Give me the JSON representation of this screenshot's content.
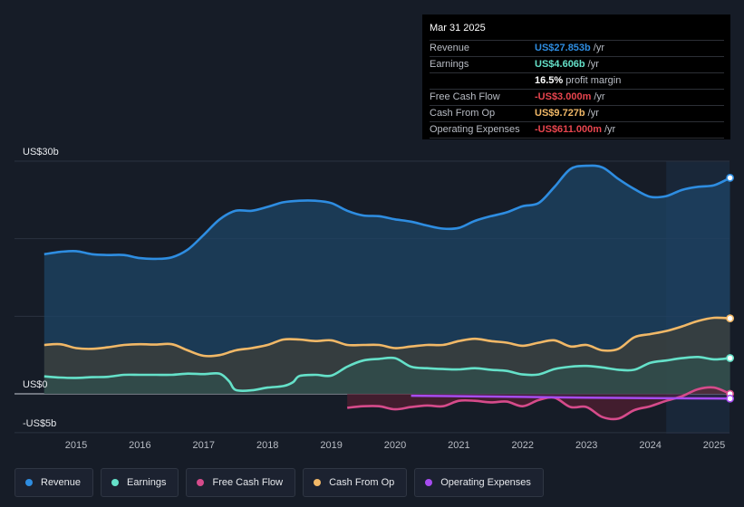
{
  "tooltip": {
    "date": "Mar 31 2025",
    "rows": [
      {
        "label": "Revenue",
        "value": "US$27.853b",
        "unit": "/yr",
        "color": "#2e8de1"
      },
      {
        "label": "Earnings",
        "value": "US$4.606b",
        "unit": "/yr",
        "color": "#65e1c9"
      },
      {
        "label": "",
        "value": "16.5%",
        "unit": "profit margin",
        "color": "#ffffff"
      },
      {
        "label": "Free Cash Flow",
        "value": "-US$3.000m",
        "unit": "/yr",
        "color": "#e8454e"
      },
      {
        "label": "Cash From Op",
        "value": "US$9.727b",
        "unit": "/yr",
        "color": "#f1b867"
      },
      {
        "label": "Operating Expenses",
        "value": "-US$611.000m",
        "unit": "/yr",
        "color": "#e8454e"
      }
    ]
  },
  "legend": [
    {
      "label": "Revenue",
      "color": "#2e8de1"
    },
    {
      "label": "Earnings",
      "color": "#65e1c9"
    },
    {
      "label": "Free Cash Flow",
      "color": "#d64b8b"
    },
    {
      "label": "Cash From Op",
      "color": "#f1b867"
    },
    {
      "label": "Operating Expenses",
      "color": "#a64cf0"
    }
  ],
  "chart_data": {
    "type": "area",
    "title": "",
    "y_axis_labels": [
      "US$30b",
      "US$0",
      "-US$5b"
    ],
    "ylim": [
      -5,
      30
    ],
    "xlim": [
      2014.5,
      2025.25
    ],
    "x_ticks": [
      "2015",
      "2016",
      "2017",
      "2018",
      "2019",
      "2020",
      "2021",
      "2022",
      "2023",
      "2024",
      "2025"
    ],
    "forecast_start": 2024.25,
    "series": [
      {
        "name": "Revenue",
        "color": "#2e8de1",
        "x": [
          2014.5,
          2014.75,
          2015.0,
          2015.25,
          2015.5,
          2015.75,
          2016.0,
          2016.25,
          2016.5,
          2016.75,
          2017.0,
          2017.25,
          2017.5,
          2017.75,
          2018.0,
          2018.25,
          2018.5,
          2018.75,
          2019.0,
          2019.25,
          2019.5,
          2019.75,
          2020.0,
          2020.25,
          2020.5,
          2020.75,
          2021.0,
          2021.25,
          2021.5,
          2021.75,
          2022.0,
          2022.25,
          2022.5,
          2022.75,
          2023.0,
          2023.25,
          2023.5,
          2023.75,
          2024.0,
          2024.25,
          2024.5,
          2024.75,
          2025.0,
          2025.25
        ],
        "values": [
          18.0,
          18.3,
          18.4,
          18.0,
          17.9,
          17.9,
          17.5,
          17.4,
          17.6,
          18.6,
          20.5,
          22.5,
          23.6,
          23.6,
          24.1,
          24.7,
          24.9,
          24.9,
          24.6,
          23.6,
          23.0,
          22.9,
          22.5,
          22.2,
          21.7,
          21.3,
          21.4,
          22.3,
          22.9,
          23.4,
          24.2,
          24.6,
          26.7,
          29.0,
          29.4,
          29.2,
          27.7,
          26.4,
          25.4,
          25.5,
          26.3,
          26.7,
          26.9,
          27.85
        ]
      },
      {
        "name": "Earnings",
        "color": "#65e1c9",
        "x": [
          2014.5,
          2014.75,
          2015.0,
          2015.25,
          2015.5,
          2015.75,
          2016.0,
          2016.25,
          2016.5,
          2016.75,
          2017.0,
          2017.25,
          2017.4,
          2017.5,
          2017.75,
          2018.0,
          2018.25,
          2018.4,
          2018.5,
          2018.75,
          2019.0,
          2019.25,
          2019.5,
          2019.75,
          2020.0,
          2020.25,
          2020.5,
          2020.75,
          2021.0,
          2021.25,
          2021.5,
          2021.75,
          2022.0,
          2022.25,
          2022.5,
          2022.75,
          2023.0,
          2023.25,
          2023.5,
          2023.75,
          2024.0,
          2024.25,
          2024.5,
          2024.75,
          2025.0,
          2025.25
        ],
        "values": [
          2.25,
          2.1,
          2.05,
          2.15,
          2.2,
          2.45,
          2.45,
          2.45,
          2.45,
          2.6,
          2.55,
          2.6,
          1.6,
          0.5,
          0.45,
          0.8,
          1.0,
          1.5,
          2.3,
          2.45,
          2.35,
          3.5,
          4.3,
          4.5,
          4.6,
          3.5,
          3.3,
          3.2,
          3.15,
          3.3,
          3.1,
          2.95,
          2.5,
          2.5,
          3.2,
          3.5,
          3.6,
          3.4,
          3.1,
          3.1,
          4.0,
          4.3,
          4.6,
          4.75,
          4.45,
          4.61
        ]
      },
      {
        "name": "Free Cash Flow",
        "color": "#d64b8b",
        "x": [
          2019.25,
          2019.5,
          2019.75,
          2020.0,
          2020.25,
          2020.5,
          2020.75,
          2021.0,
          2021.25,
          2021.5,
          2021.75,
          2022.0,
          2022.25,
          2022.5,
          2022.75,
          2023.0,
          2023.25,
          2023.5,
          2023.75,
          2024.0,
          2024.25,
          2024.5,
          2024.75,
          2025.0,
          2025.25
        ],
        "values": [
          -1.8,
          -1.6,
          -1.6,
          -2.0,
          -1.7,
          -1.5,
          -1.6,
          -0.9,
          -0.9,
          -1.1,
          -1.0,
          -1.6,
          -0.8,
          -0.5,
          -1.7,
          -1.7,
          -3.0,
          -3.2,
          -2.1,
          -1.6,
          -0.9,
          -0.3,
          0.6,
          0.8,
          -0.003
        ]
      },
      {
        "name": "Cash From Op",
        "color": "#f1b867",
        "x": [
          2014.5,
          2014.75,
          2015.0,
          2015.25,
          2015.5,
          2015.75,
          2016.0,
          2016.25,
          2016.5,
          2016.75,
          2017.0,
          2017.25,
          2017.5,
          2017.75,
          2018.0,
          2018.25,
          2018.5,
          2018.75,
          2019.0,
          2019.25,
          2019.5,
          2019.75,
          2020.0,
          2020.25,
          2020.5,
          2020.75,
          2021.0,
          2021.25,
          2021.5,
          2021.75,
          2022.0,
          2022.25,
          2022.5,
          2022.75,
          2023.0,
          2023.25,
          2023.5,
          2023.75,
          2024.0,
          2024.25,
          2024.5,
          2024.75,
          2025.0,
          2025.25
        ],
        "values": [
          6.3,
          6.4,
          5.9,
          5.8,
          6.0,
          6.3,
          6.4,
          6.35,
          6.4,
          5.6,
          4.9,
          5.0,
          5.6,
          5.9,
          6.3,
          7.0,
          7.0,
          6.8,
          6.9,
          6.3,
          6.3,
          6.3,
          5.9,
          6.1,
          6.3,
          6.3,
          6.8,
          7.1,
          6.8,
          6.6,
          6.2,
          6.6,
          6.9,
          6.1,
          6.3,
          5.6,
          5.8,
          7.3,
          7.7,
          8.1,
          8.7,
          9.4,
          9.8,
          9.73
        ]
      },
      {
        "name": "Operating Expenses",
        "color": "#a64cf0",
        "x": [
          2020.25,
          2021.0,
          2022.0,
          2023.0,
          2024.0,
          2025.0,
          2025.25
        ],
        "values": [
          -0.25,
          -0.3,
          -0.4,
          -0.5,
          -0.55,
          -0.6,
          -0.61
        ]
      }
    ]
  }
}
